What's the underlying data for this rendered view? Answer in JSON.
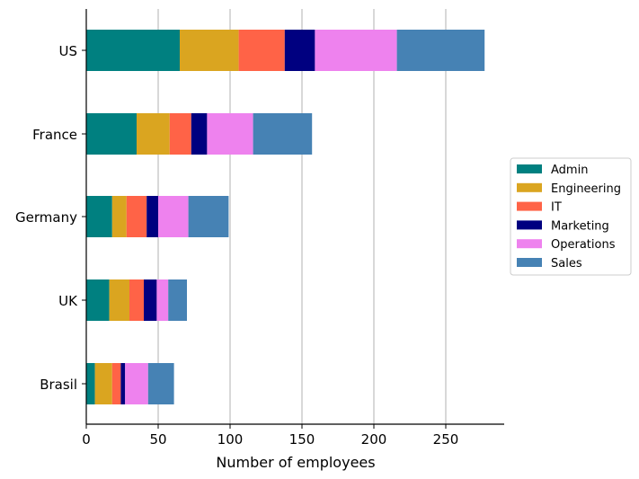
{
  "chart_data": {
    "type": "bar",
    "orientation": "horizontal",
    "stacked": true,
    "title": "",
    "xlabel": "Number of employees",
    "ylabel": "",
    "xlim": [
      0,
      290
    ],
    "xticks": [
      0,
      50,
      100,
      150,
      200,
      250
    ],
    "grid": "vertical",
    "legend_position": "right",
    "categories": [
      "US",
      "France",
      "Germany",
      "UK",
      "Brasil"
    ],
    "series": [
      {
        "name": "Admin",
        "color": "#008080",
        "values": [
          65,
          35,
          18,
          16,
          6
        ]
      },
      {
        "name": "Engineering",
        "color": "#DAA520",
        "values": [
          41,
          23,
          10,
          14,
          12
        ]
      },
      {
        "name": "IT",
        "color": "#FF6347",
        "values": [
          32,
          15,
          14,
          10,
          6
        ]
      },
      {
        "name": "Marketing",
        "color": "#000080",
        "values": [
          21,
          11,
          8,
          9,
          3
        ]
      },
      {
        "name": "Operations",
        "color": "#EE82EE",
        "values": [
          57,
          32,
          21,
          8,
          16
        ]
      },
      {
        "name": "Sales",
        "color": "#4682B4",
        "values": [
          61,
          41,
          28,
          13,
          18
        ]
      }
    ]
  }
}
